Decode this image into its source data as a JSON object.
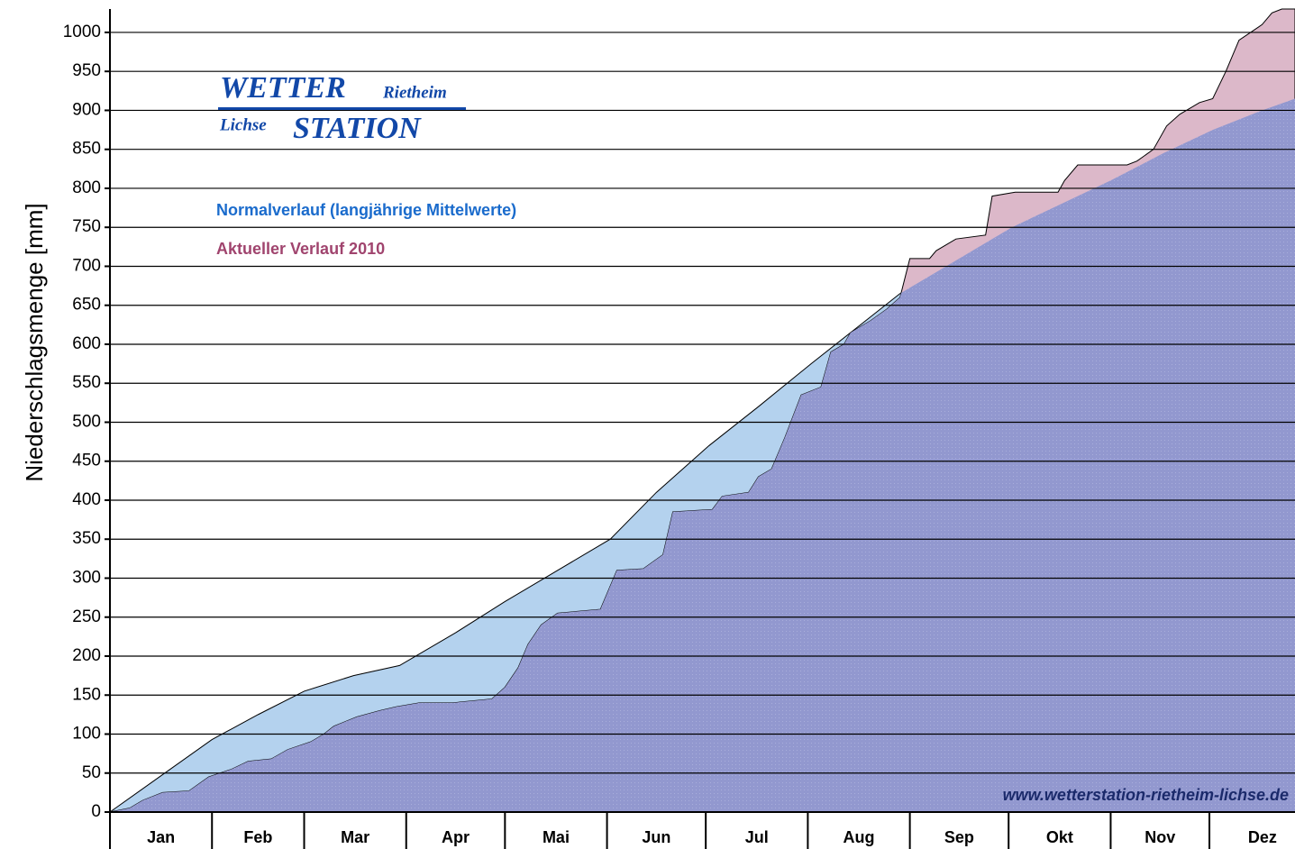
{
  "chart_data": {
    "type": "area",
    "y_label": "Niederschlagsmenge [mm]",
    "logo": {
      "line1a": "WETTER",
      "line1b": "Rietheim",
      "line2a": "Lichse",
      "line2b": "STATION"
    },
    "watermark": "www.wetterstation-rietheim-lichse.de",
    "categories": [
      "Jan",
      "Feb",
      "Mar",
      "Apr",
      "Mai",
      "Jun",
      "Jul",
      "Aug",
      "Sep",
      "Okt",
      "Nov",
      "Dez"
    ],
    "xticks": [
      0,
      31,
      59,
      90,
      120,
      151,
      181,
      212,
      243,
      273,
      304,
      334
    ],
    "xlim": [
      0,
      360
    ],
    "ylim": [
      0,
      1030
    ],
    "yticks": [
      0,
      50,
      100,
      150,
      200,
      250,
      300,
      350,
      400,
      450,
      500,
      550,
      600,
      650,
      700,
      750,
      800,
      850,
      900,
      950,
      1000
    ],
    "grid": true,
    "series": [
      {
        "name": "Normalverlauf (langjährige Mittelwerte)",
        "color": "#b4d2ee",
        "x": [
          0,
          15,
          31,
          45,
          59,
          74,
          88,
          105,
          120,
          136,
          152,
          166,
          182,
          197,
          213,
          228,
          240,
          258,
          274,
          289,
          304,
          320,
          335,
          350,
          360
        ],
        "values": [
          0,
          45,
          93,
          125,
          155,
          175,
          188,
          230,
          270,
          310,
          350,
          410,
          470,
          520,
          575,
          625,
          665,
          710,
          750,
          780,
          810,
          845,
          875,
          900,
          915
        ]
      },
      {
        "name": "Aktueller Verlauf 2010",
        "color": "#dcb8c9",
        "x": [
          0,
          6,
          10,
          16,
          24,
          30,
          37,
          42,
          49,
          54,
          61,
          65,
          68,
          75,
          82,
          87,
          94,
          104,
          116,
          120,
          124,
          127,
          131,
          136,
          149,
          154,
          162,
          168,
          171,
          183,
          186,
          194,
          197,
          201,
          205,
          210,
          216,
          219,
          223,
          225,
          231,
          236,
          240,
          243,
          249,
          251,
          257,
          266,
          268,
          275,
          288,
          290,
          294,
          309,
          312,
          317,
          321,
          325,
          331,
          335,
          339,
          343,
          350,
          353,
          356,
          360
        ],
        "values": [
          0,
          5,
          15,
          25,
          27,
          45,
          55,
          65,
          68,
          80,
          90,
          100,
          110,
          122,
          130,
          135,
          140,
          140,
          145,
          160,
          185,
          215,
          240,
          255,
          260,
          310,
          312,
          330,
          385,
          388,
          405,
          410,
          430,
          440,
          480,
          535,
          545,
          590,
          600,
          615,
          630,
          645,
          660,
          710,
          710,
          720,
          735,
          740,
          790,
          795,
          795,
          810,
          830,
          830,
          835,
          850,
          880,
          895,
          910,
          915,
          950,
          990,
          1010,
          1025,
          1030,
          1030
        ]
      }
    ]
  }
}
